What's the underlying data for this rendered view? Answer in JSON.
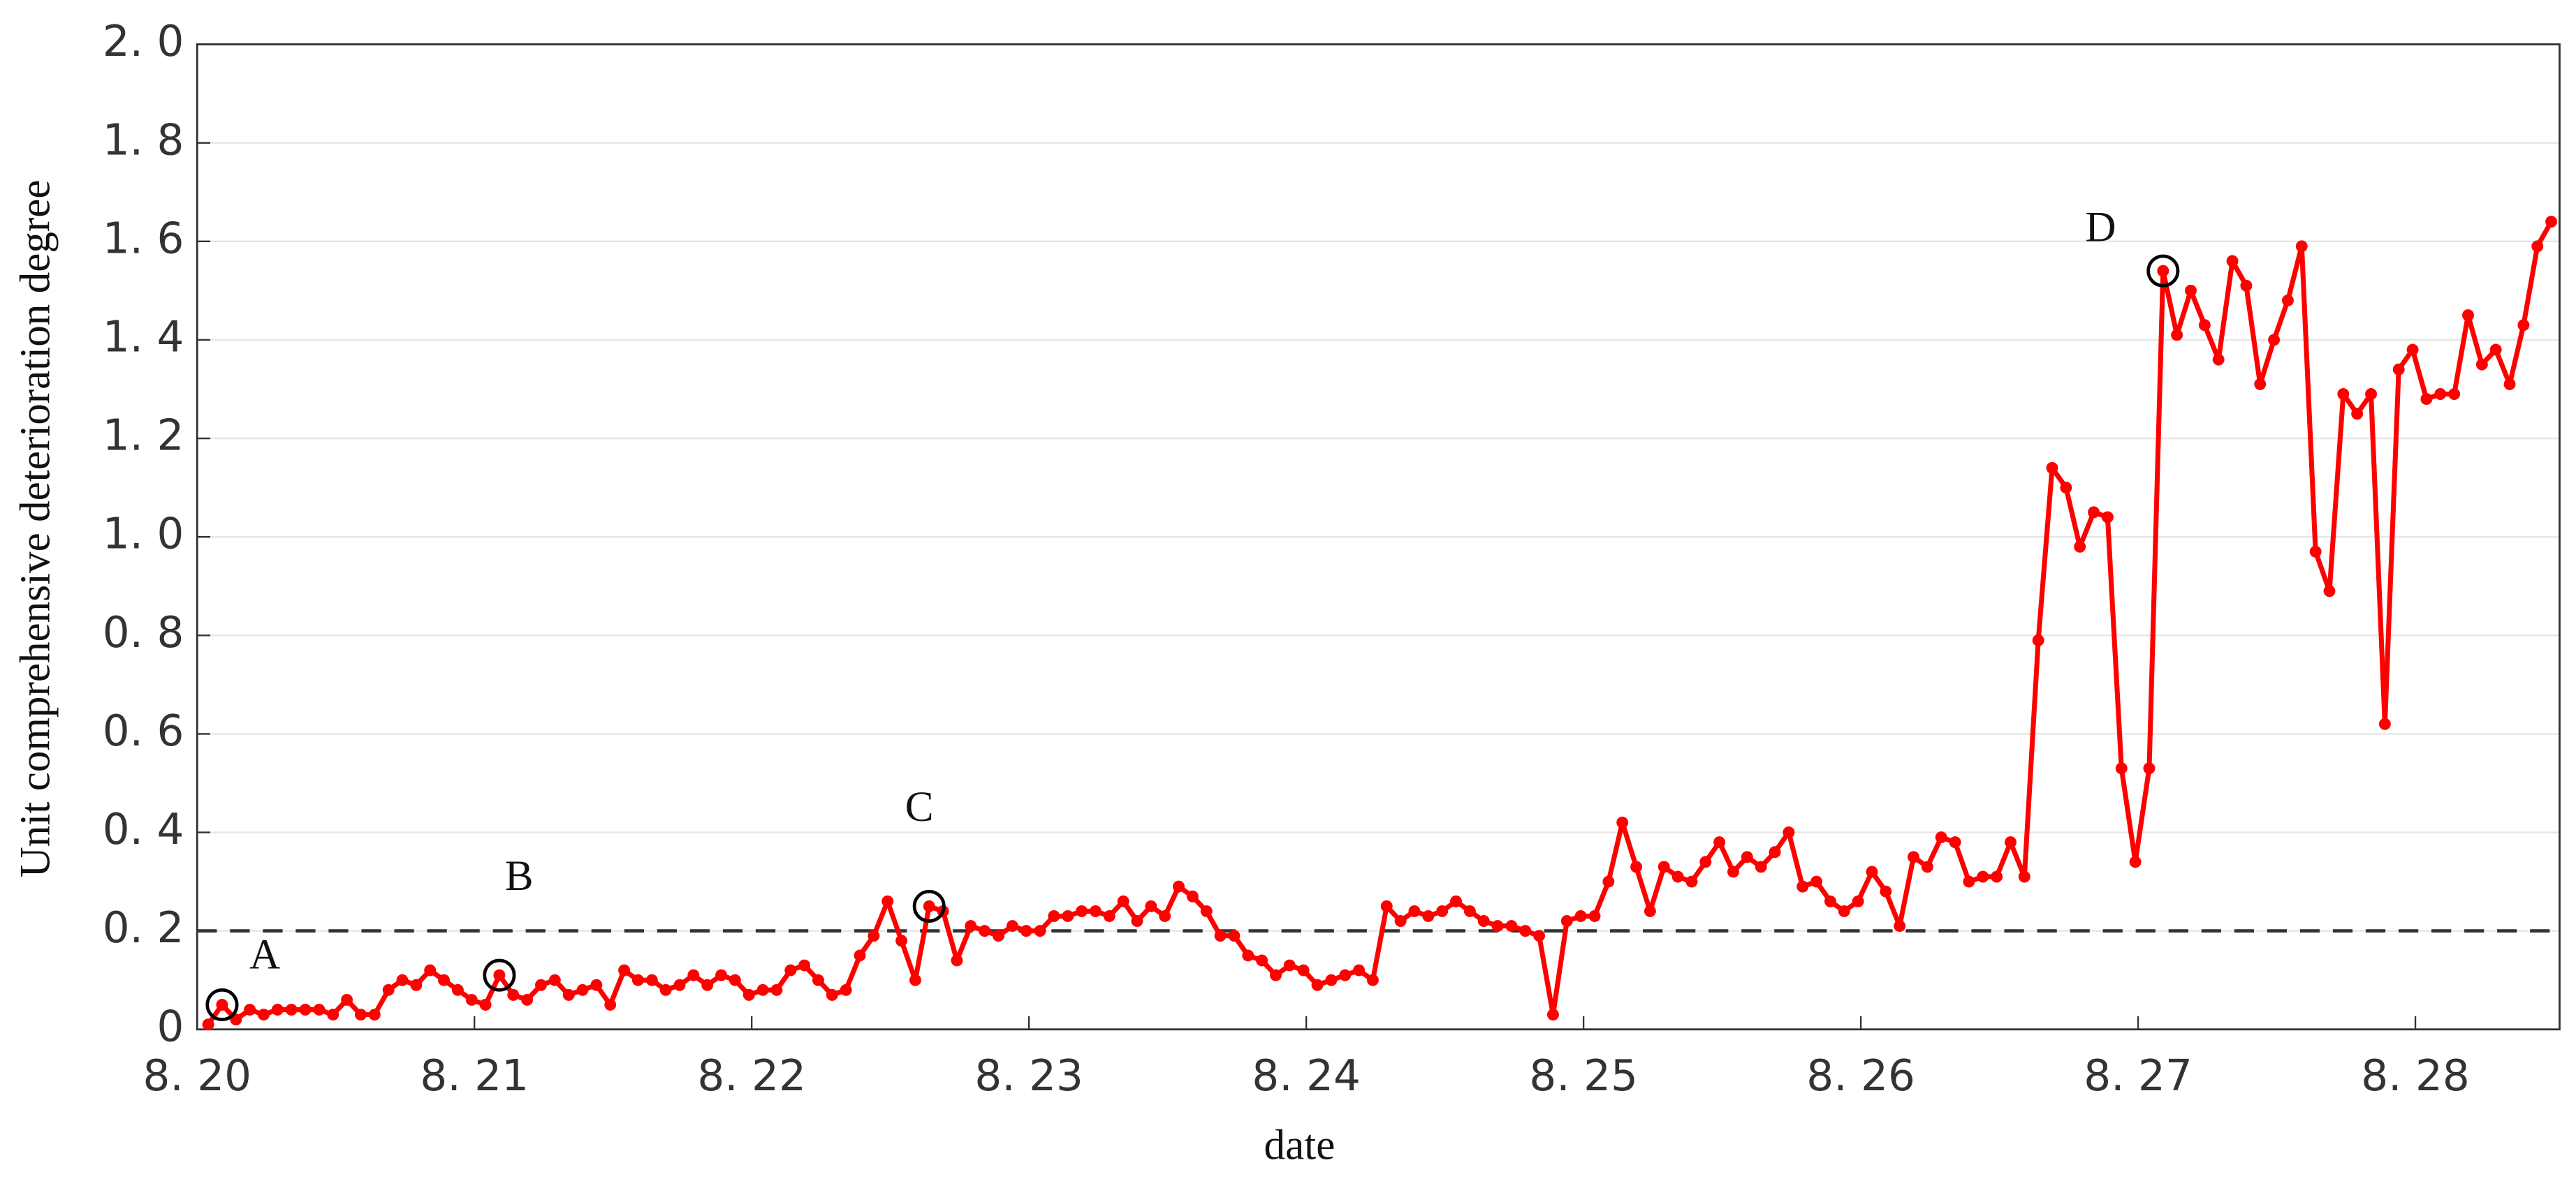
{
  "chart_data": {
    "type": "line",
    "xlabel": "date",
    "ylabel": "Unit comprehensive deterioration degree",
    "x": [
      20.04,
      20.09,
      20.14,
      20.19,
      20.24,
      20.29,
      20.34,
      20.39,
      20.44,
      20.49,
      20.54,
      20.59,
      20.64,
      20.69,
      20.74,
      20.79,
      20.84,
      20.89,
      20.94,
      20.99,
      21.04,
      21.09,
      21.14,
      21.19,
      21.24,
      21.29,
      21.34,
      21.39,
      21.44,
      21.49,
      21.54,
      21.59,
      21.64,
      21.69,
      21.74,
      21.79,
      21.84,
      21.89,
      21.94,
      21.99,
      22.04,
      22.09,
      22.14,
      22.19,
      22.24,
      22.29,
      22.34,
      22.39,
      22.44,
      22.49,
      22.54,
      22.59,
      22.64,
      22.69,
      22.74,
      22.79,
      22.84,
      22.89,
      22.94,
      22.99,
      23.04,
      23.09,
      23.14,
      23.19,
      23.24,
      23.29,
      23.34,
      23.39,
      23.44,
      23.49,
      23.54,
      23.59,
      23.64,
      23.69,
      23.74,
      23.79,
      23.84,
      23.89,
      23.94,
      23.99,
      24.04,
      24.09,
      24.14,
      24.19,
      24.24,
      24.29,
      24.34,
      24.39,
      24.44,
      24.49,
      24.54,
      24.59,
      24.64,
      24.69,
      24.74,
      24.79,
      24.84,
      24.89,
      24.94,
      24.99,
      25.04,
      25.09,
      25.14,
      25.19,
      25.24,
      25.29,
      25.34,
      25.39,
      25.44,
      25.49,
      25.54,
      25.59,
      25.64,
      25.69,
      25.74,
      25.79,
      25.84,
      25.89,
      25.94,
      25.99,
      26.04,
      26.09,
      26.14,
      26.19,
      26.24,
      26.29,
      26.34,
      26.39,
      26.44,
      26.49,
      26.54,
      26.59,
      26.64,
      26.69,
      26.74,
      26.79,
      26.84,
      26.89,
      26.94,
      26.99,
      27.04,
      27.09,
      27.14,
      27.19,
      27.24,
      27.29,
      27.34,
      27.39,
      27.44,
      27.49,
      27.54,
      27.59,
      27.64,
      27.69,
      27.74,
      27.79,
      27.84,
      27.89,
      27.94,
      27.99,
      28.04,
      28.09,
      28.14,
      28.19,
      28.24,
      28.29,
      28.34,
      28.39,
      28.44,
      28.49
    ],
    "series": [
      {
        "color": "#ff0000",
        "values": [
          0.01,
          0.05,
          0.02,
          0.04,
          0.03,
          0.04,
          0.04,
          0.04,
          0.04,
          0.03,
          0.06,
          0.03,
          0.03,
          0.08,
          0.1,
          0.09,
          0.12,
          0.1,
          0.08,
          0.06,
          0.05,
          0.11,
          0.07,
          0.06,
          0.09,
          0.1,
          0.07,
          0.08,
          0.09,
          0.05,
          0.12,
          0.1,
          0.1,
          0.08,
          0.09,
          0.11,
          0.09,
          0.11,
          0.1,
          0.07,
          0.08,
          0.08,
          0.12,
          0.13,
          0.1,
          0.07,
          0.08,
          0.15,
          0.19,
          0.26,
          0.18,
          0.1,
          0.25,
          0.24,
          0.14,
          0.21,
          0.2,
          0.19,
          0.21,
          0.2,
          0.2,
          0.23,
          0.23,
          0.24,
          0.24,
          0.23,
          0.26,
          0.22,
          0.25,
          0.23,
          0.29,
          0.27,
          0.24,
          0.19,
          0.19,
          0.15,
          0.14,
          0.11,
          0.13,
          0.12,
          0.09,
          0.1,
          0.11,
          0.12,
          0.1,
          0.25,
          0.22,
          0.24,
          0.23,
          0.24,
          0.26,
          0.24,
          0.22,
          0.21,
          0.21,
          0.2,
          0.19,
          0.03,
          0.22,
          0.23,
          0.23,
          0.3,
          0.42,
          0.33,
          0.24,
          0.33,
          0.31,
          0.3,
          0.34,
          0.38,
          0.32,
          0.35,
          0.33,
          0.36,
          0.4,
          0.29,
          0.3,
          0.26,
          0.24,
          0.26,
          0.32,
          0.28,
          0.21,
          0.35,
          0.33,
          0.39,
          0.38,
          0.3,
          0.31,
          0.31,
          0.38,
          0.31,
          0.79,
          1.14,
          1.1,
          0.98,
          1.05,
          1.04,
          0.53,
          0.34,
          0.53,
          1.54,
          1.41,
          1.5,
          1.43,
          1.36,
          1.56,
          1.51,
          1.31,
          1.4,
          1.48,
          1.59,
          0.97,
          0.89,
          1.29,
          1.25,
          1.29,
          0.62,
          1.34,
          1.38,
          1.28,
          1.29,
          1.29,
          1.45,
          1.35,
          1.38,
          1.31,
          1.43,
          1.59,
          1.64
        ]
      }
    ],
    "threshold": 0.2,
    "annotations": [
      {
        "text": "A",
        "x": 20.09,
        "y": 0.05
      },
      {
        "text": "B",
        "x": 21.09,
        "y": 0.11
      },
      {
        "text": "C",
        "x": 22.64,
        "y": 0.25
      },
      {
        "text": "D",
        "x": 27.09,
        "y": 1.54
      }
    ],
    "xlim": [
      20,
      28.52
    ],
    "xticks": [
      {
        "value": 20,
        "label": "8. 20"
      },
      {
        "value": 21,
        "label": "8. 21"
      },
      {
        "value": 22,
        "label": "8. 22"
      },
      {
        "value": 23,
        "label": "8. 23"
      },
      {
        "value": 24,
        "label": "8. 24"
      },
      {
        "value": 25,
        "label": "8. 25"
      },
      {
        "value": 26,
        "label": "8. 26"
      },
      {
        "value": 27,
        "label": "8. 27"
      },
      {
        "value": 28,
        "label": "8. 28"
      }
    ],
    "ylim": [
      0,
      2
    ],
    "yticks": [
      0,
      {
        "value": 0.2,
        "label": "0. 2"
      },
      {
        "value": 0.4,
        "label": "0. 4"
      },
      {
        "value": 0.6,
        "label": "0. 6"
      },
      {
        "value": 0.8,
        "label": "0. 8"
      },
      {
        "value": 1.0,
        "label": "1. 0"
      },
      {
        "value": 1.2,
        "label": "1. 2"
      },
      {
        "value": 1.4,
        "label": "1. 4"
      },
      {
        "value": 1.6,
        "label": "1. 6"
      },
      {
        "value": 1.8,
        "label": "1. 8"
      },
      {
        "value": 2.0,
        "label": "2. 0"
      }
    ],
    "grid": true
  }
}
